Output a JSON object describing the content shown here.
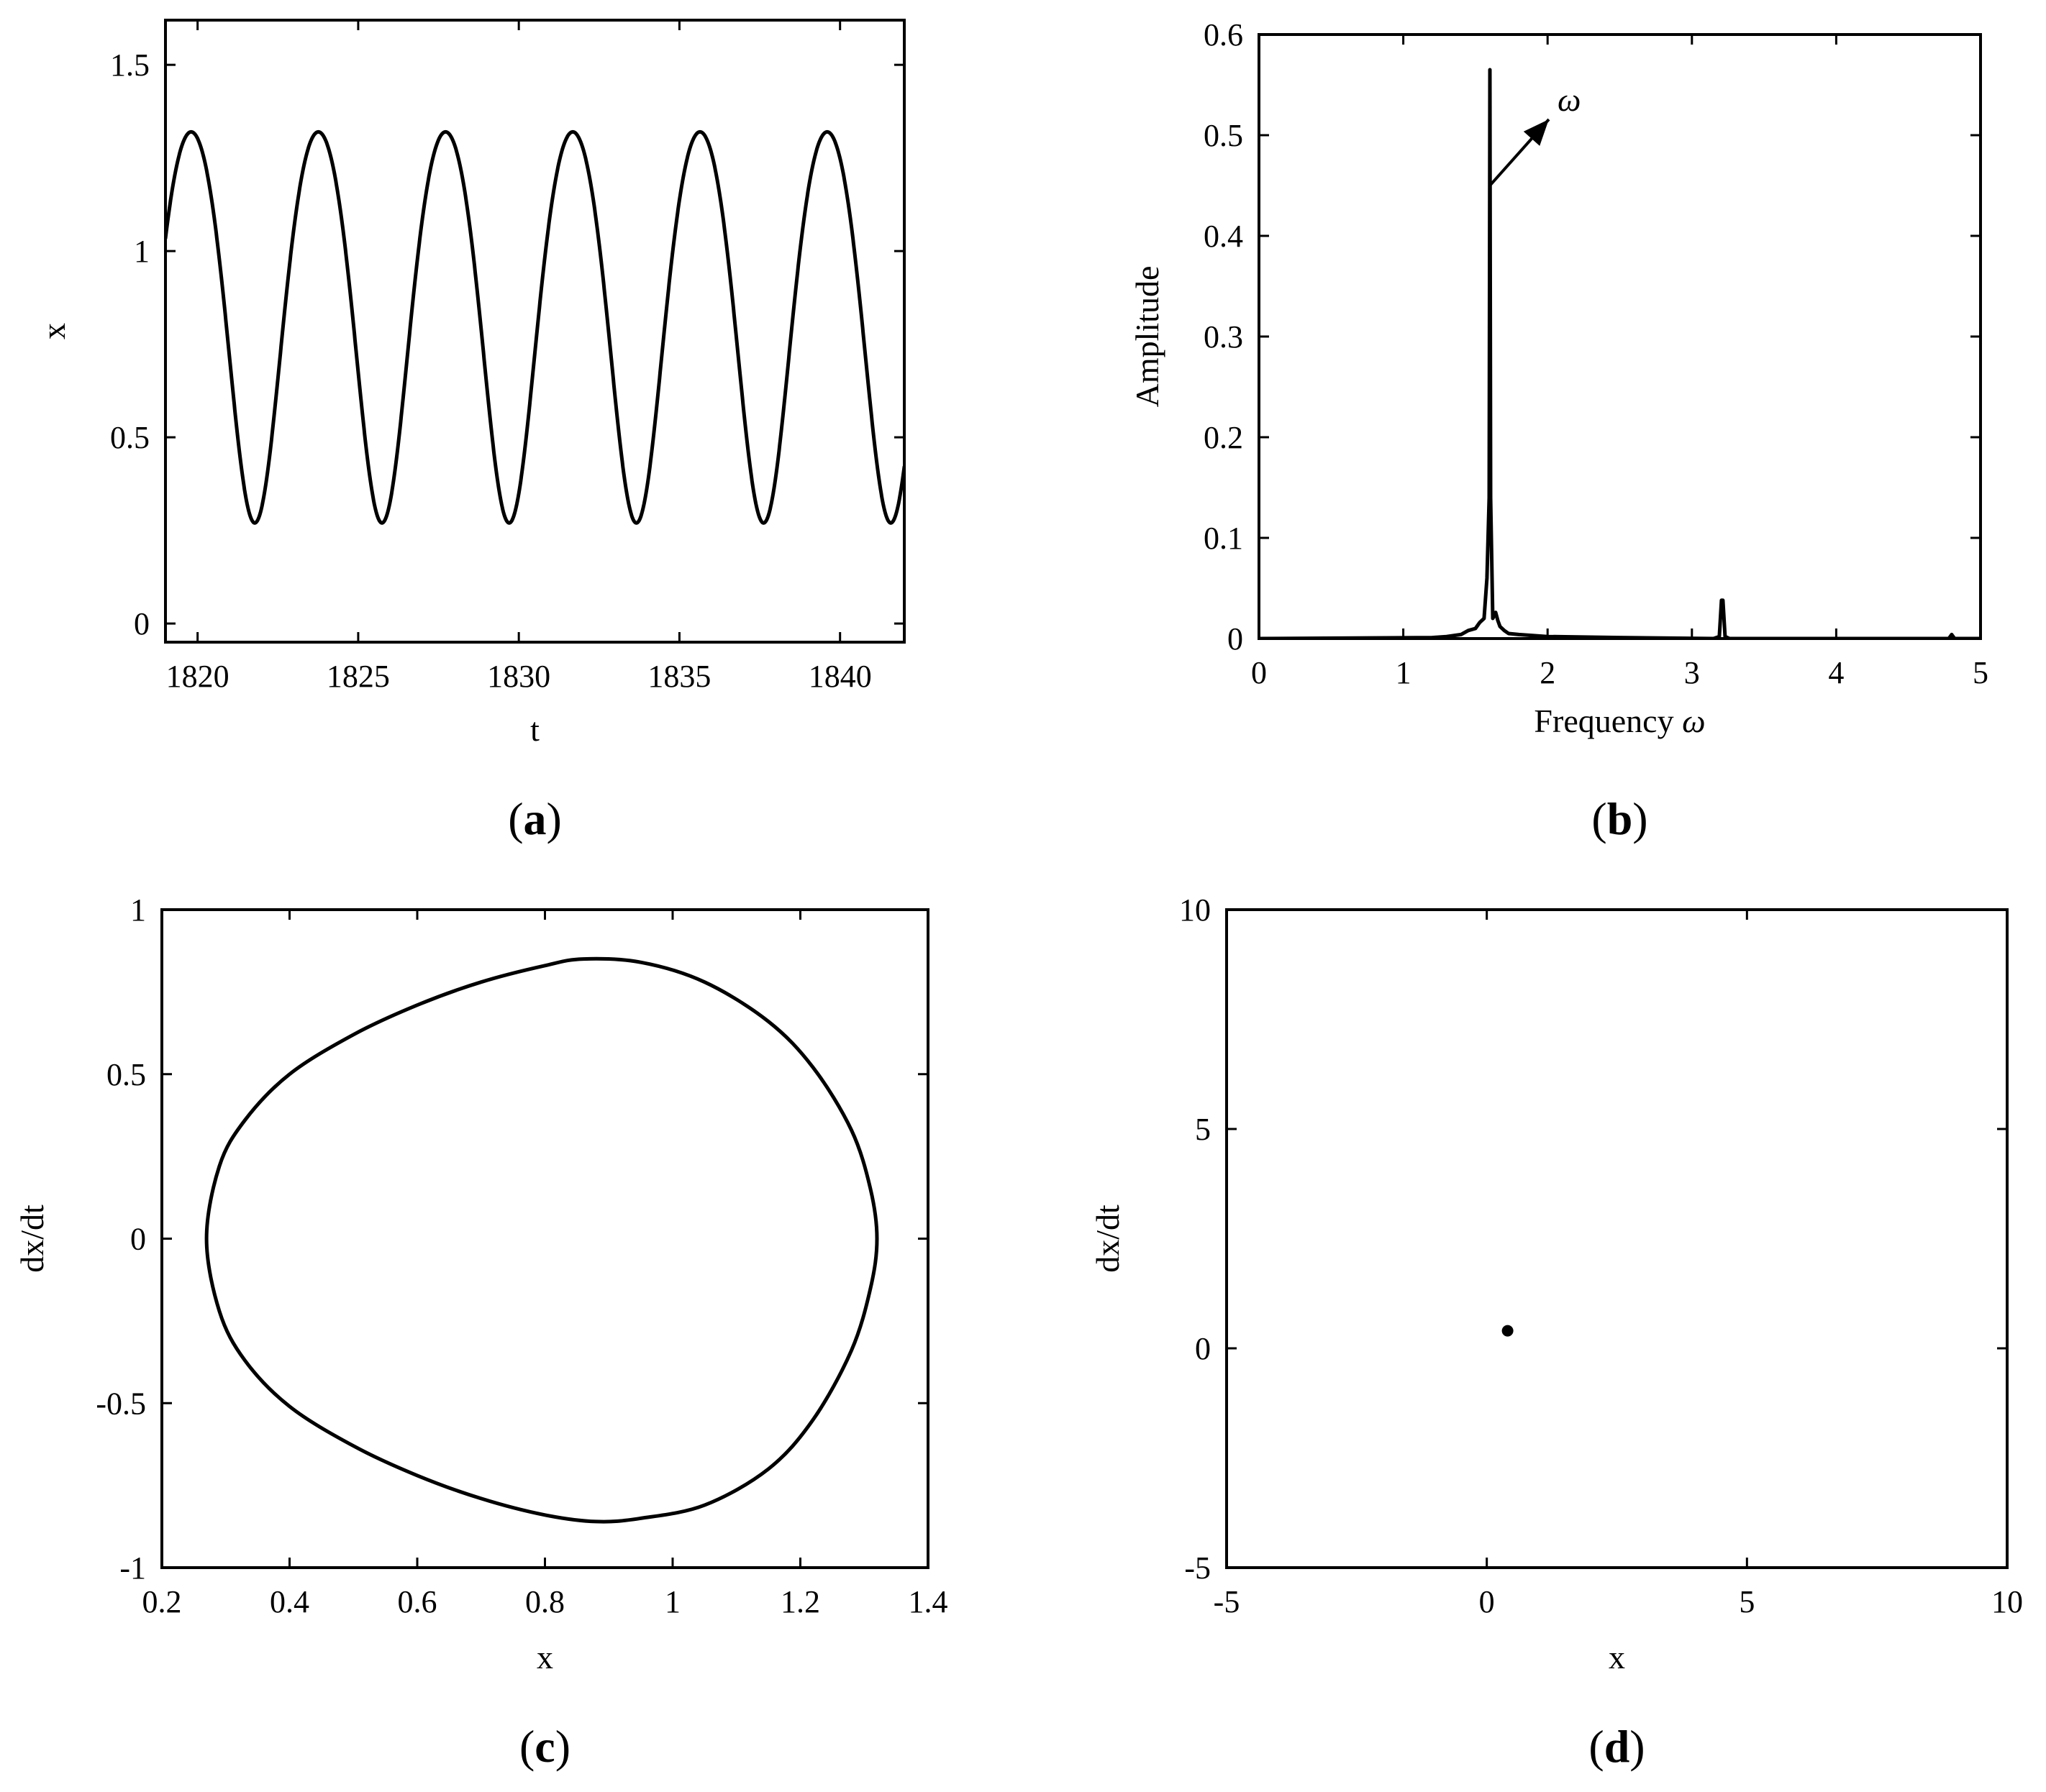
{
  "chart_data": [
    {
      "panel": "a",
      "type": "line",
      "caption": "(a)",
      "caption_letter": "a",
      "xlabel": "t",
      "ylabel": "x",
      "xlim": [
        1819,
        1842
      ],
      "ylim": [
        -0.05,
        1.62
      ],
      "xticks": [
        1820,
        1825,
        1830,
        1835,
        1840
      ],
      "yticks": [
        0,
        0.5,
        1,
        1.5
      ],
      "series": [
        {
          "model": "periodic",
          "period": 3.96,
          "first_peak_t": 1819.8,
          "min": 0.27,
          "max": 1.32,
          "shape_asymmetry": 0.18
        }
      ]
    },
    {
      "panel": "b",
      "type": "line",
      "caption": "(b)",
      "caption_letter": "b",
      "xlabel": "Frequency ",
      "xlabel_symbol": "ω",
      "ylabel": "Amplitude",
      "xlim": [
        0,
        5
      ],
      "ylim": [
        0,
        0.6
      ],
      "xticks": [
        0,
        1,
        2,
        3,
        4,
        5
      ],
      "yticks": [
        0,
        0.1,
        0.2,
        0.3,
        0.4,
        0.5,
        0.6
      ],
      "annotation": {
        "text": "ω",
        "points_to": [
          1.6,
          0.45
        ]
      },
      "series": [
        {
          "x": [
            0,
            1.2,
            1.3,
            1.4,
            1.45,
            1.5,
            1.53,
            1.56,
            1.58,
            1.595,
            1.6,
            1.605,
            1.62,
            1.64,
            1.655,
            1.67,
            1.7,
            1.73,
            1.8,
            2.0,
            2.5,
            3.15,
            3.19,
            3.205,
            3.215,
            3.23,
            3.26,
            4.78,
            4.8,
            4.82,
            5.0
          ],
          "y": [
            0,
            0.001,
            0.002,
            0.004,
            0.008,
            0.01,
            0.016,
            0.02,
            0.06,
            0.14,
            0.565,
            0.14,
            0.02,
            0.026,
            0.018,
            0.012,
            0.008,
            0.005,
            0.004,
            0.002,
            0.001,
            0.0,
            0.002,
            0.038,
            0.038,
            0.002,
            0.0,
            0.0,
            0.004,
            0.0,
            0.0
          ]
        }
      ]
    },
    {
      "panel": "c",
      "type": "line",
      "caption": "(c)",
      "caption_letter": "c",
      "xlabel": "x",
      "ylabel": "dx/dt",
      "xlim": [
        0.2,
        1.4
      ],
      "ylim": [
        -1,
        1
      ],
      "xticks": [
        "0.2",
        "0.4",
        "0.6",
        "0.8",
        "1",
        "1.2",
        "1.4"
      ],
      "yticks": [
        "-1",
        "-0.5",
        "0",
        "0.5",
        "1"
      ],
      "series": [
        {
          "x": [
            0.27,
            0.29,
            0.33,
            0.4,
            0.5,
            0.6,
            0.7,
            0.8,
            0.86,
            0.95,
            1.05,
            1.15,
            1.22,
            1.28,
            1.31,
            1.32,
            1.31,
            1.28,
            1.22,
            1.15,
            1.05,
            0.95,
            0.88,
            0.8,
            0.7,
            0.6,
            0.5,
            0.4,
            0.33,
            0.29,
            0.27
          ],
          "y": [
            0.0,
            0.22,
            0.36,
            0.5,
            0.62,
            0.71,
            0.78,
            0.83,
            0.85,
            0.84,
            0.78,
            0.66,
            0.52,
            0.33,
            0.15,
            0.0,
            -0.15,
            -0.34,
            -0.55,
            -0.7,
            -0.81,
            -0.85,
            -0.86,
            -0.84,
            -0.79,
            -0.72,
            -0.63,
            -0.51,
            -0.37,
            -0.22,
            0.0
          ]
        }
      ]
    },
    {
      "panel": "d",
      "type": "scatter",
      "caption": "(d)",
      "caption_letter": "d",
      "xlabel": "x",
      "ylabel": "dx/dt",
      "xlim": [
        -5,
        10
      ],
      "ylim": [
        -5,
        10
      ],
      "xticks": [
        -5,
        0,
        5,
        10
      ],
      "yticks": [
        -5,
        0,
        5,
        10
      ],
      "series": [
        {
          "x": [
            0.4
          ],
          "y": [
            0.4
          ]
        }
      ]
    }
  ]
}
